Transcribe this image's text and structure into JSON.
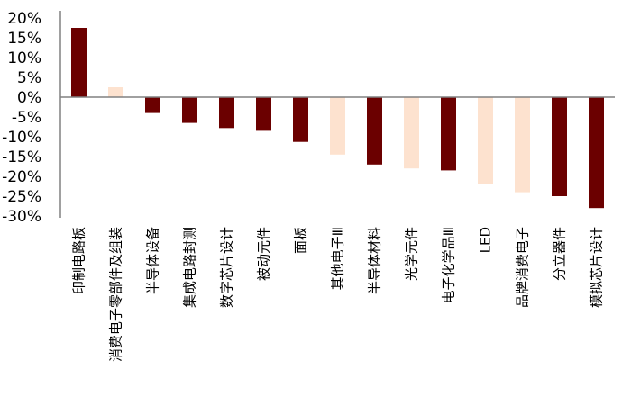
{
  "chart_data": {
    "type": "bar",
    "title": "",
    "xlabel": "",
    "ylabel": "",
    "ylim": [
      -30,
      20
    ],
    "yticks": [
      "20%",
      "15%",
      "10%",
      "5%",
      "0%",
      "-5%",
      "-10%",
      "-15%",
      "-20%",
      "-25%",
      "-30%"
    ],
    "ytick_values": [
      20,
      15,
      10,
      5,
      0,
      -5,
      -10,
      -15,
      -20,
      -25,
      -30
    ],
    "grid": false,
    "legend": "none",
    "categories": [
      "印制电路板",
      "消费电子零部件及组装",
      "半导体设备",
      "集成电路封测",
      "数字芯片设计",
      "被动元件",
      "面板",
      "其他电子Ⅲ",
      "半导体材料",
      "光学元件",
      "电子化学品Ⅲ",
      "LED",
      "品牌消费电子",
      "分立器件",
      "模拟芯片设计"
    ],
    "values": [
      17.5,
      2.5,
      -4.0,
      -6.5,
      -7.8,
      -8.5,
      -11.3,
      -14.5,
      -17.0,
      -18.0,
      -18.5,
      -22.0,
      -24.0,
      -25.0,
      -28.0
    ],
    "highlight": [
      true,
      false,
      true,
      true,
      true,
      true,
      true,
      false,
      true,
      false,
      true,
      false,
      false,
      true,
      true
    ],
    "colors": {
      "highlight": "#6b0000",
      "muted": "#fde2cf",
      "axis": "#808080"
    }
  }
}
